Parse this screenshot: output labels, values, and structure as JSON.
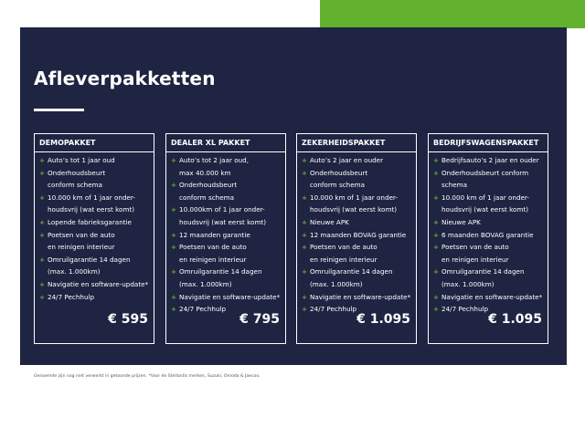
{
  "header": {
    "title": "Afleverpakketten"
  },
  "cards": [
    {
      "title": "DEMOPAKKET",
      "price": "€ 595",
      "items": [
        [
          "Auto’s tot 1 jaar oud"
        ],
        [
          "Onderhoudsbeurt",
          "conform schema"
        ],
        [
          "10.000 km of 1 jaar onder-",
          "houdsvrij (wat eerst komt)"
        ],
        [
          "Lopende fabrieksgarantie"
        ],
        [
          "Poetsen van de auto",
          "en reinigen interieur"
        ],
        [
          "Omruilgarantie 14 dagen",
          "(max. 1.000km)"
        ],
        [
          "Navigatie en software-update*"
        ],
        [
          "24/7 Pechhulp"
        ]
      ]
    },
    {
      "title": "DEALER XL PAKKET",
      "price": "€ 795",
      "items": [
        [
          "Auto’s tot 2 jaar oud,",
          "max 40.000 km"
        ],
        [
          "Onderhoudsbeurt",
          "conform schema"
        ],
        [
          "10.000km of 1 jaar onder-",
          "houdsvrij (wat eerst komt)"
        ],
        [
          "12 maanden garantie"
        ],
        [
          "Poetsen van de auto",
          "en reinigen interieur"
        ],
        [
          "Omruilgarantie 14 dagen",
          "(max. 1.000km)"
        ],
        [
          "Navigatie en software-update*"
        ],
        [
          "24/7 Pechhulp"
        ]
      ]
    },
    {
      "title": "ZEKERHEIDSPAKKET",
      "price": "€ 1.095",
      "items": [
        [
          "Auto’s 2 jaar en ouder"
        ],
        [
          "Onderhoudsbeurt",
          "conform schema"
        ],
        [
          "10.000 km of 1 jaar onder-",
          "houdsvrij (wat eerst komt)"
        ],
        [
          "Nieuwe APK"
        ],
        [
          "12 maanden BOVAG garantie"
        ],
        [
          "Poetsen van de auto",
          "en reinigen interieur"
        ],
        [
          "Omruilgarantie 14 dagen",
          "(max. 1.000km)"
        ],
        [
          "Navigatie en software-update*"
        ],
        [
          "24/7 Pechhulp"
        ]
      ]
    },
    {
      "title": "BEDRIJFSWAGENSPAKKET",
      "price": "€ 1.095",
      "items": [
        [
          "Bedrijfsauto’s 2 jaar en ouder"
        ],
        [
          "Onderhoudsbeurt conform",
          "schema"
        ],
        [
          "10.000 km of 1 jaar onder-",
          "houdsvrij (wat eerst komt)"
        ],
        [
          "Nieuwe APK"
        ],
        [
          "6 maanden BOVAG garantie"
        ],
        [
          "Poetsen van de auto",
          "en reinigen interieur"
        ],
        [
          "Omruilgarantie 14 dagen",
          "(max. 1.000km)"
        ],
        [
          "Navigatie en software-update*"
        ],
        [
          "24/7 Pechhulp"
        ]
      ]
    }
  ],
  "footer": {
    "note": "Genoemde zijn nog niet verwerkt in getoonde prijzen. *Voor de Stellantis merken, Suzuki, Omoda & Jaecoo."
  }
}
